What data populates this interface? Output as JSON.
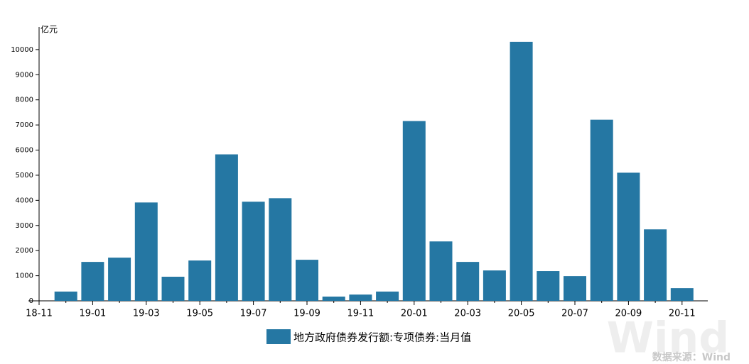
{
  "chart_data": {
    "type": "bar",
    "y_unit": "亿元",
    "categories": [
      "18-11",
      null,
      "19-01",
      null,
      "19-03",
      null,
      "19-05",
      null,
      "19-07",
      null,
      "19-09",
      null,
      "19-11",
      null,
      "20-01",
      null,
      "20-03",
      null,
      "20-05",
      null,
      "20-07",
      null,
      "20-09",
      null,
      "20-11"
    ],
    "series": [
      {
        "name": "地方政府债券发行额:专项债券:当月值",
        "color": "#2577a3",
        "values": [
          null,
          370,
          1550,
          1720,
          3915,
          960,
          1605,
          5830,
          3945,
          4085,
          1635,
          170,
          250,
          370,
          7155,
          2365,
          1550,
          1210,
          10310,
          1185,
          985,
          7210,
          5100,
          2845,
          505
        ]
      }
    ],
    "ylim": [
      0,
      10900
    ],
    "yticks": [
      0,
      1000,
      2000,
      3000,
      4000,
      5000,
      6000,
      7000,
      8000,
      9000,
      10000
    ],
    "legend": "bottom",
    "source": "数据来源：Wind",
    "watermark": "Wind"
  }
}
